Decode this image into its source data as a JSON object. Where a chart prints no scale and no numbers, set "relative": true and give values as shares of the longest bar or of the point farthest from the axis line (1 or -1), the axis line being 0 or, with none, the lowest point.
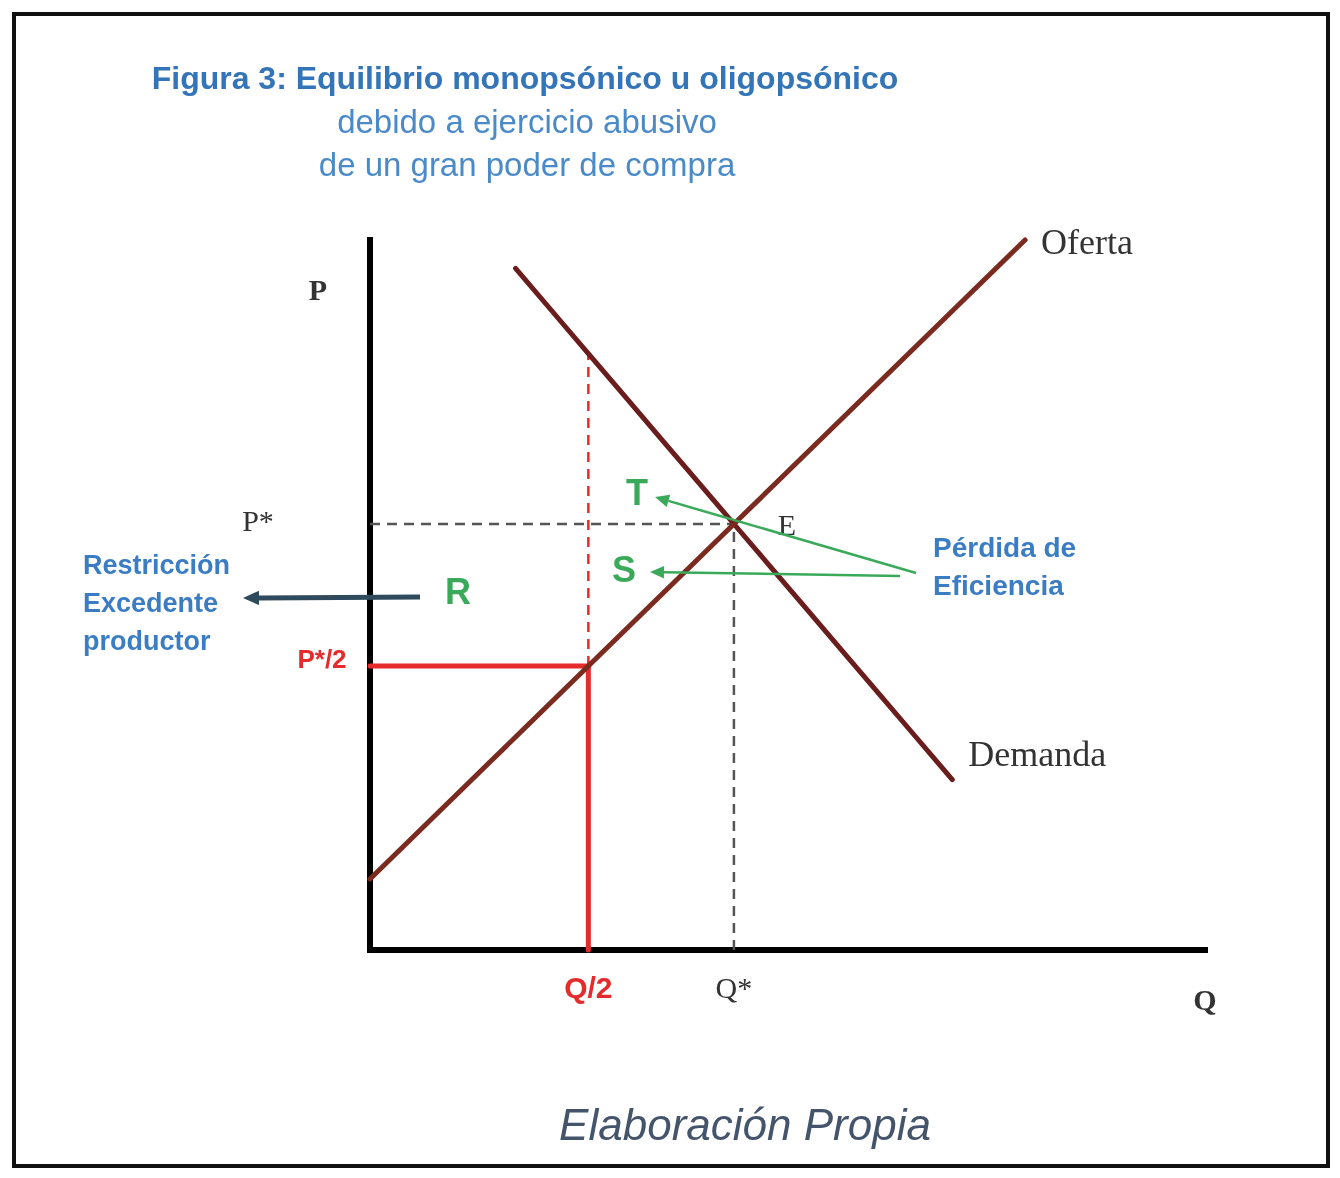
{
  "chart_data": {
    "type": "line",
    "relative": true,
    "title": "Figura 3: Equilibrio monopsónico u oligopsónico",
    "subtitle": "debido a ejercicio abusivo\nde un gran poder de compra",
    "xlabel": "Q",
    "ylabel": "P",
    "categories": [
      null,
      null,
      null,
      null,
      null,
      null,
      "Q/2",
      null,
      null,
      null,
      "Q*",
      null,
      null,
      null,
      null,
      null,
      null,
      null,
      null,
      null,
      null,
      null,
      null,
      null
    ],
    "series": [
      {
        "name": "Oferta",
        "color": "#7a2a1e",
        "values": [
          0.1,
          0.15,
          0.2,
          0.25,
          0.3,
          0.35,
          0.4,
          0.45,
          0.5,
          0.55,
          0.6,
          0.65,
          0.7,
          0.75,
          0.8,
          0.85,
          0.9,
          0.95,
          1,
          null,
          null,
          null,
          null,
          null
        ]
      },
      {
        "name": "Demanda",
        "color": "#6b1d1d",
        "values": [
          null,
          null,
          null,
          null,
          0.96,
          0.9,
          0.84,
          0.78,
          0.72,
          0.66,
          0.6,
          0.54,
          0.48,
          0.42,
          0.36,
          0.3,
          0.24,
          null,
          null,
          null,
          null,
          null,
          null,
          null
        ]
      },
      {
        "color": "#555555",
        "line_style": "dashed",
        "values": [
          0.6,
          0.6,
          0.6,
          0.6,
          0.6,
          0.6,
          0.6,
          0.6,
          0.6,
          0.6,
          0.6,
          null,
          null,
          null,
          null,
          null,
          null,
          null,
          null,
          null,
          null,
          null,
          null,
          null
        ]
      },
      {
        "color": "#555555",
        "line_style": "dashed",
        "x": [
          "Q*",
          "Q*"
        ],
        "values": [
          0,
          0.6
        ]
      },
      {
        "color": "#e52b2b",
        "values": [
          0.4,
          0.4,
          0.4,
          0.4,
          0.4,
          0.4,
          0.4,
          null,
          null,
          null,
          null,
          null,
          null,
          null,
          null,
          null,
          null,
          null,
          null,
          null,
          null,
          null,
          null,
          null
        ]
      },
      {
        "color": "#e52b2b",
        "x": [
          "Q/2",
          "Q/2"
        ],
        "values": [
          0,
          0.4
        ]
      },
      {
        "color": "#e52b2b",
        "line_style": "dashed",
        "x": [
          "Q/2",
          "Q/2"
        ],
        "values": [
          0.4,
          0.84
        ]
      }
    ],
    "annotations": [
      "E",
      "T",
      "S",
      "R",
      "Pérdida de\nEficiencia",
      "Restricción\nExcedente\nproductor",
      "P*",
      "P*/2",
      "Elaboración Propia"
    ]
  }
}
